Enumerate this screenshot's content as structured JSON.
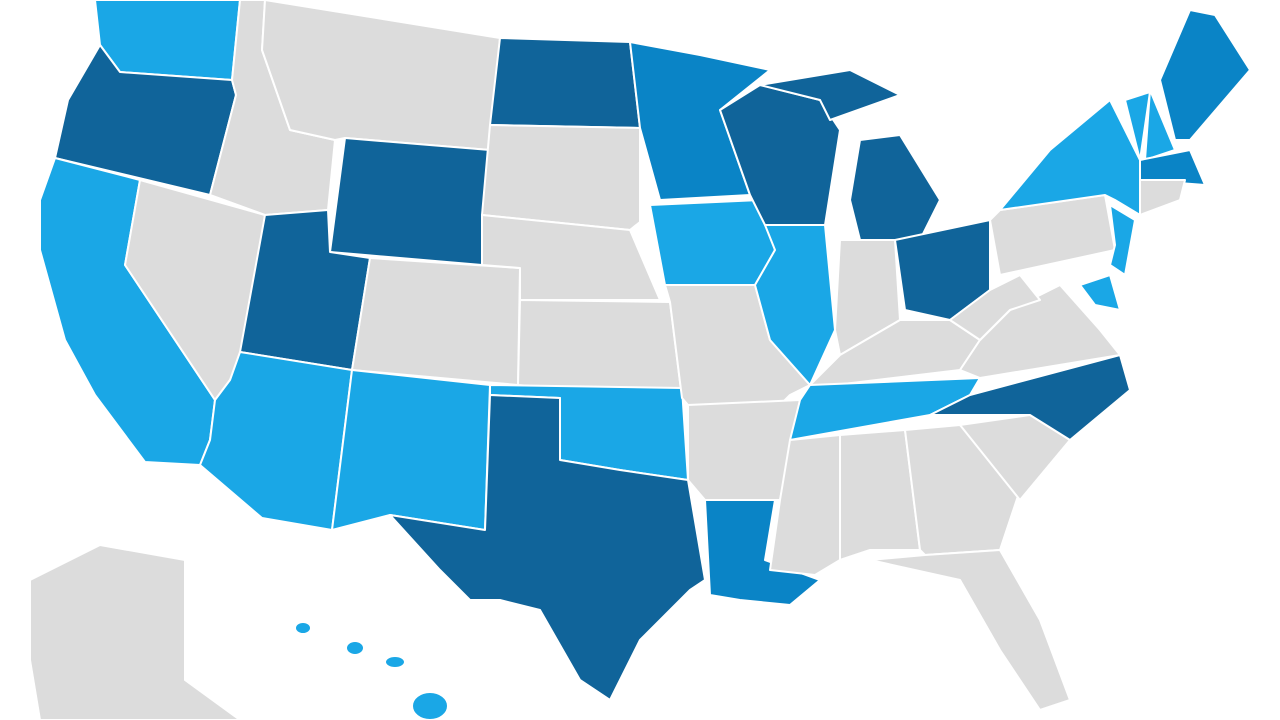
{
  "map": {
    "fill_colors": [
      "#dcdcdc",
      "#1aa7e6",
      "#0a84c6",
      "#10649a"
    ],
    "border_color": "#ffffff",
    "background": "#ffffff"
  }
}
